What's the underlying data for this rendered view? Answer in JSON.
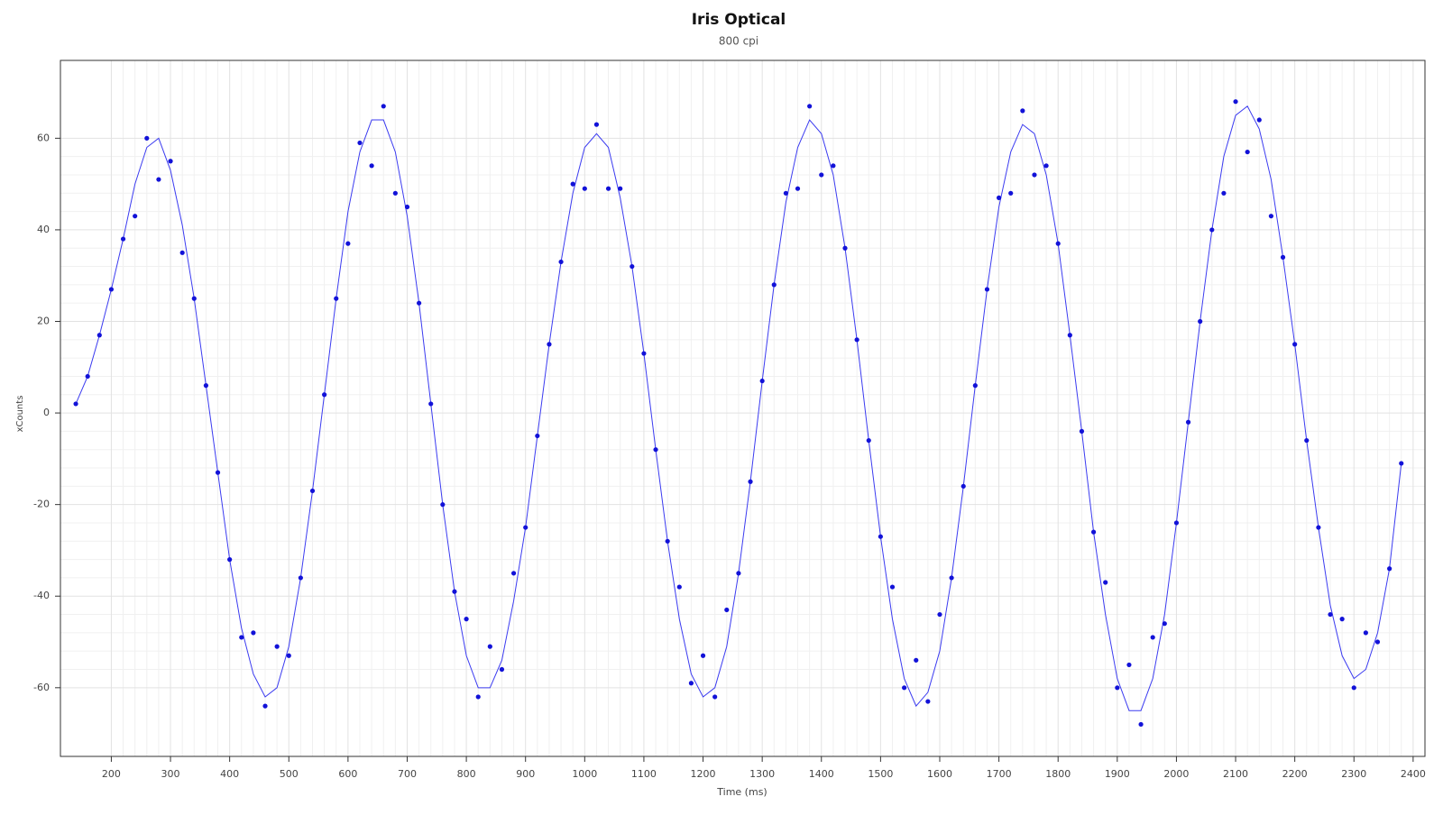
{
  "chart_data": {
    "type": "line",
    "title": "Iris Optical",
    "subtitle": "800 cpi",
    "x_label": "Time (ms)",
    "y_label": "xCounts",
    "xlim": [
      114,
      2420
    ],
    "ylim": [
      -75,
      77
    ],
    "xticks": [
      200,
      300,
      400,
      500,
      600,
      700,
      800,
      900,
      1000,
      1100,
      1200,
      1300,
      1400,
      1500,
      1600,
      1700,
      1800,
      1900,
      2000,
      2100,
      2200,
      2300,
      2400
    ],
    "yticks": [
      -60,
      -40,
      -20,
      0,
      20,
      40,
      60
    ],
    "grid": true,
    "x": [
      140,
      160,
      180,
      200,
      220,
      240,
      260,
      280,
      300,
      320,
      340,
      360,
      380,
      400,
      420,
      440,
      460,
      480,
      500,
      520,
      540,
      560,
      580,
      600,
      620,
      640,
      660,
      680,
      700,
      720,
      740,
      760,
      780,
      800,
      820,
      840,
      860,
      880,
      900,
      920,
      940,
      960,
      980,
      1000,
      1020,
      1040,
      1060,
      1080,
      1100,
      1120,
      1140,
      1160,
      1180,
      1200,
      1220,
      1240,
      1260,
      1280,
      1300,
      1320,
      1340,
      1360,
      1380,
      1400,
      1420,
      1440,
      1460,
      1480,
      1500,
      1520,
      1540,
      1560,
      1580,
      1600,
      1620,
      1640,
      1660,
      1680,
      1700,
      1720,
      1740,
      1760,
      1780,
      1800,
      1820,
      1840,
      1860,
      1880,
      1900,
      1920,
      1940,
      1960,
      1980,
      2000,
      2020,
      2040,
      2060,
      2080,
      2100,
      2120,
      2140,
      2160,
      2180,
      2200,
      2220,
      2240,
      2260,
      2280,
      2300,
      2320,
      2340,
      2360,
      2380
    ],
    "series": [
      {
        "type": "line",
        "color": "#3b3bf0",
        "values": [
          2,
          8,
          17,
          27,
          38,
          50,
          58,
          60,
          53,
          41,
          25,
          6,
          -13,
          -32,
          -47,
          -57,
          -62,
          -60,
          -51,
          -36,
          -17,
          4,
          25,
          44,
          57,
          64,
          64,
          57,
          43,
          24,
          2,
          -20,
          -39,
          -53,
          -60,
          -60,
          -54,
          -41,
          -25,
          -5,
          15,
          33,
          48,
          58,
          61,
          58,
          47,
          32,
          13,
          -8,
          -28,
          -45,
          -57,
          -62,
          -60,
          -51,
          -35,
          -15,
          7,
          28,
          46,
          58,
          64,
          61,
          52,
          36,
          16,
          -6,
          -27,
          -45,
          -58,
          -64,
          -61,
          -52,
          -36,
          -16,
          6,
          27,
          45,
          57,
          63,
          61,
          52,
          37,
          17,
          -4,
          -26,
          -44,
          -58,
          -65,
          -65,
          -58,
          -44,
          -24,
          -2,
          20,
          40,
          56,
          65,
          67,
          62,
          51,
          34,
          15,
          -6,
          -25,
          -42,
          -53,
          -58,
          -56,
          -48,
          -34,
          -11
        ]
      },
      {
        "type": "scatter",
        "color": "#1212d8",
        "values": [
          2,
          8,
          17,
          27,
          38,
          43,
          60,
          51,
          55,
          35,
          25,
          6,
          -13,
          -32,
          -49,
          -48,
          -64,
          -51,
          -53,
          -36,
          -17,
          4,
          25,
          37,
          59,
          54,
          67,
          48,
          45,
          24,
          2,
          -20,
          -39,
          -45,
          -62,
          -51,
          -56,
          -35,
          -25,
          -5,
          15,
          33,
          50,
          49,
          63,
          49,
          49,
          32,
          13,
          -8,
          -28,
          -38,
          -59,
          -53,
          -62,
          -43,
          -35,
          -15,
          7,
          28,
          48,
          49,
          67,
          52,
          54,
          36,
          16,
          -6,
          -27,
          -38,
          -60,
          -54,
          -63,
          -44,
          -36,
          -16,
          6,
          27,
          47,
          48,
          66,
          52,
          54,
          37,
          17,
          -4,
          -26,
          -37,
          -60,
          -55,
          -68,
          -49,
          -46,
          -24,
          -2,
          20,
          40,
          48,
          68,
          57,
          64,
          43,
          34,
          15,
          -6,
          -25,
          -44,
          -45,
          -60,
          -48,
          -50,
          -34,
          -11
        ]
      }
    ]
  }
}
